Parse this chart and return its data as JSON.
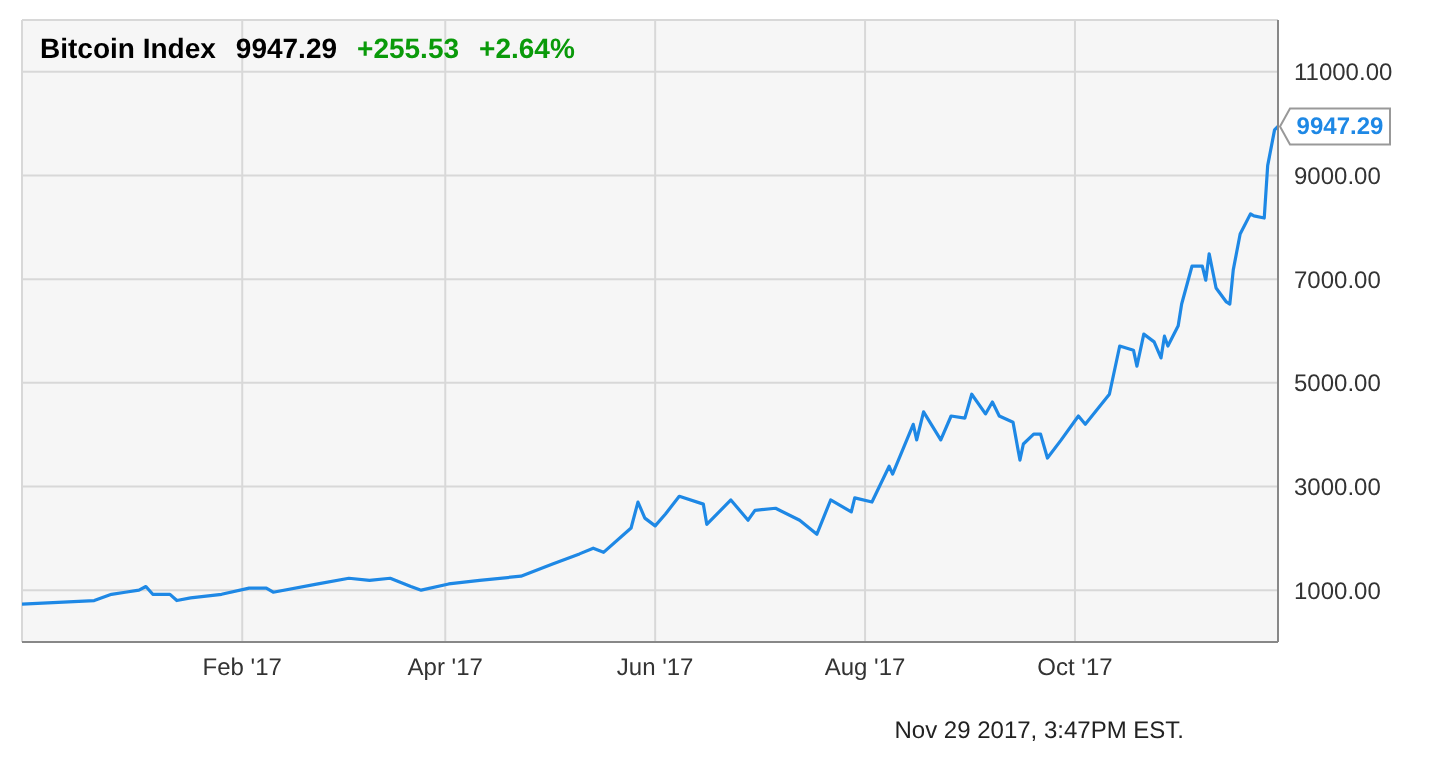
{
  "chart_data": {
    "type": "line",
    "title": "Bitcoin Index",
    "annotations": [
      "9947.29",
      "+255.53",
      "+2.64%",
      {
        "text": "9947.29",
        "x": "2017-11-29",
        "y": 9947.29
      },
      "Nov 29 2017, 3:47PM EST."
    ],
    "x": [
      "2016-11-29",
      "2016-12-20",
      "2016-12-25",
      "2016-12-29",
      "2017-01-02",
      "2017-01-04",
      "2017-01-06",
      "2017-01-11",
      "2017-01-13",
      "2017-01-17",
      "2017-01-26",
      "2017-02-03",
      "2017-02-08",
      "2017-02-10",
      "2017-02-23",
      "2017-03-04",
      "2017-03-10",
      "2017-03-16",
      "2017-03-22",
      "2017-03-25",
      "2017-04-02",
      "2017-04-11",
      "2017-04-23",
      "2017-05-02",
      "2017-05-10",
      "2017-05-14",
      "2017-05-17",
      "2017-05-25",
      "2017-05-27",
      "2017-05-29",
      "2017-06-01",
      "2017-06-04",
      "2017-06-08",
      "2017-06-15",
      "2017-06-16",
      "2017-06-23",
      "2017-06-28",
      "2017-06-30",
      "2017-07-06",
      "2017-07-13",
      "2017-07-18",
      "2017-07-22",
      "2017-07-28",
      "2017-07-29",
      "2017-08-03",
      "2017-08-08",
      "2017-08-09",
      "2017-08-15",
      "2017-08-16",
      "2017-08-18",
      "2017-08-23",
      "2017-08-26",
      "2017-08-30",
      "2017-09-01",
      "2017-09-05",
      "2017-09-07",
      "2017-09-09",
      "2017-09-13",
      "2017-09-15",
      "2017-09-16",
      "2017-09-19",
      "2017-09-21",
      "2017-09-23",
      "2017-09-27",
      "2017-10-02",
      "2017-10-04",
      "2017-10-11",
      "2017-10-14",
      "2017-10-18",
      "2017-10-19",
      "2017-10-21",
      "2017-10-24",
      "2017-10-26",
      "2017-10-27",
      "2017-10-28",
      "2017-10-31",
      "2017-11-01",
      "2017-11-04",
      "2017-11-07",
      "2017-11-08",
      "2017-11-09",
      "2017-11-11",
      "2017-11-14",
      "2017-11-15",
      "2017-11-16",
      "2017-11-18",
      "2017-11-21",
      "2017-11-22",
      "2017-11-25",
      "2017-11-26",
      "2017-11-28",
      "2017-11-29"
    ],
    "series": [
      {
        "color": "#1e88e5",
        "values": [
          730,
          800,
          920,
          960,
          1000,
          1070,
          920,
          920,
          800,
          850,
          920,
          1040,
          1040,
          960,
          1120,
          1230,
          1190,
          1230,
          1070,
          1000,
          1120,
          1190,
          1270,
          1500,
          1700,
          1810,
          1730,
          2200,
          2700,
          2390,
          2240,
          2470,
          2810,
          2660,
          2270,
          2740,
          2350,
          2540,
          2580,
          2350,
          2080,
          2740,
          2510,
          2780,
          2700,
          3390,
          3240,
          4200,
          3900,
          4440,
          3900,
          4360,
          4320,
          4780,
          4400,
          4630,
          4360,
          4240,
          3510,
          3820,
          4010,
          4010,
          3550,
          3900,
          4360,
          4200,
          4780,
          5710,
          5630,
          5320,
          5940,
          5790,
          5480,
          5900,
          5710,
          6100,
          6520,
          7250,
          7250,
          6980,
          7490,
          6830,
          6560,
          6520,
          7180,
          7870,
          8260,
          8220,
          8180,
          9190,
          9880,
          9947.29
        ]
      }
    ],
    "xlim": [
      "2016-11-29",
      "2017-11-29"
    ],
    "xticks": [
      {
        "value": "2017-02-01",
        "label": "Feb '17"
      },
      {
        "value": "2017-04-01",
        "label": "Apr '17"
      },
      {
        "value": "2017-06-01",
        "label": "Jun '17"
      },
      {
        "value": "2017-08-01",
        "label": "Aug '17"
      },
      {
        "value": "2017-10-01",
        "label": "Oct '17"
      }
    ],
    "ylim": [
      0,
      12000
    ],
    "yticks": [
      {
        "value": 1000,
        "label": "1000.00"
      },
      {
        "value": 3000,
        "label": "3000.00"
      },
      {
        "value": 5000,
        "label": "5000.00"
      },
      {
        "value": 7000,
        "label": "7000.00"
      },
      {
        "value": 9000,
        "label": "9000.00"
      },
      {
        "value": 11000,
        "label": "11000.00"
      }
    ],
    "grid": true,
    "legend": false,
    "marker": "none",
    "line_style": "solid"
  }
}
